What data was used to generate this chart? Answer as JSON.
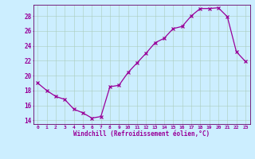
{
  "x": [
    0,
    1,
    2,
    3,
    4,
    5,
    6,
    7,
    8,
    9,
    10,
    11,
    12,
    13,
    14,
    15,
    16,
    17,
    18,
    19,
    20,
    21,
    22,
    23
  ],
  "y": [
    19.0,
    18.0,
    17.2,
    16.8,
    15.5,
    15.0,
    14.3,
    14.5,
    18.5,
    18.7,
    20.4,
    21.7,
    23.0,
    24.4,
    25.0,
    26.3,
    26.6,
    28.0,
    29.0,
    29.0,
    29.1,
    27.9,
    23.2,
    21.9
  ],
  "line_color": "#990099",
  "marker": "x",
  "bg_color": "#cceeff",
  "grid_color": "#aaccbb",
  "xlabel": "Windchill (Refroidissement éolien,°C)",
  "xlabel_color": "#990099",
  "tick_color": "#990099",
  "spine_color": "#660066",
  "ylim": [
    13.5,
    29.5
  ],
  "xlim": [
    -0.5,
    23.5
  ],
  "yticks": [
    14,
    16,
    18,
    20,
    22,
    24,
    26,
    28
  ],
  "xticks": [
    0,
    1,
    2,
    3,
    4,
    5,
    6,
    7,
    8,
    9,
    10,
    11,
    12,
    13,
    14,
    15,
    16,
    17,
    18,
    19,
    20,
    21,
    22,
    23
  ]
}
